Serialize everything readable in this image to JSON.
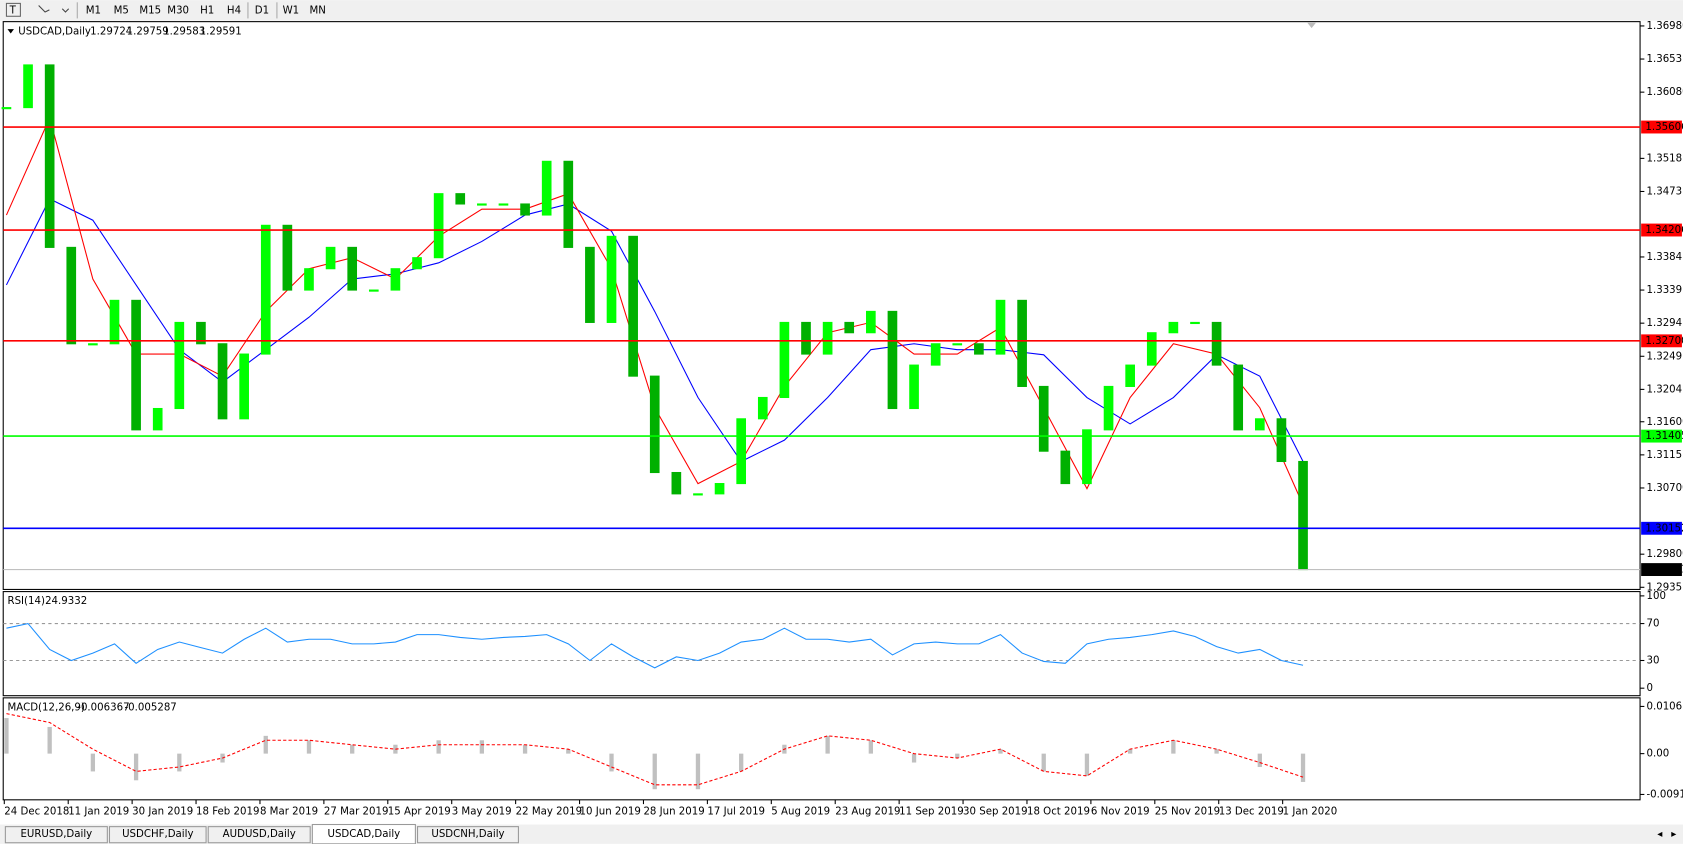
{
  "toolbar": {
    "timeframes": [
      "M1",
      "M5",
      "M15",
      "M30",
      "H1",
      "H4",
      "D1",
      "W1",
      "MN"
    ]
  },
  "tabs": [
    "EURUSD,Daily",
    "USDCHF,Daily",
    "AUDUSD,Daily",
    "USDCAD,Daily",
    "USDCNH,Daily"
  ],
  "active_tab": 3,
  "chart_data": [
    {
      "type": "candlestick",
      "title": "USDCAD,Daily",
      "quote": [
        1.29724,
        1.29759,
        1.29583,
        1.29591
      ],
      "color": "#00ff00",
      "down_color": "#00b000",
      "values": [
        1.3587,
        1.3645,
        1.3397,
        1.3266,
        1.3266,
        1.3325,
        1.3149,
        1.3178,
        1.3295,
        1.3266,
        1.3164,
        1.3252,
        1.3427,
        1.3339,
        1.3368,
        1.3397,
        1.3339,
        1.3339,
        1.3368,
        1.3383,
        1.347,
        1.3456,
        1.3456,
        1.3456,
        1.3441,
        1.3514,
        1.3397,
        1.3295,
        1.3412,
        1.3222,
        1.3091,
        1.3062,
        1.3062,
        1.3076,
        1.3164,
        1.3193,
        1.3295,
        1.3252,
        1.3295,
        1.3281,
        1.331,
        1.3178,
        1.3237,
        1.3266,
        1.3266,
        1.3252,
        1.3325,
        1.3208,
        1.312,
        1.3076,
        1.3149,
        1.3208,
        1.3237,
        1.3281,
        1.3295,
        1.3295,
        1.3237,
        1.3149,
        1.3164,
        1.3106,
        1.29591
      ],
      "series": [
        {
          "color": "#0000ff",
          "values": [
            1.3346,
            1.3463,
            1.3434,
            1.3346,
            1.3258,
            1.3214,
            1.3258,
            1.3302,
            1.3354,
            1.3361,
            1.3376,
            1.3405,
            1.3441,
            1.3456,
            1.3419,
            1.331,
            1.3193,
            1.3106,
            1.3135,
            1.3193,
            1.3258,
            1.3266,
            1.3258,
            1.3258,
            1.3251,
            1.3193,
            1.3157,
            1.3193,
            1.3251,
            1.3222,
            1.3106
          ]
        },
        {
          "color": "#ff0000",
          "values": [
            1.3441,
            1.3573,
            1.3354,
            1.3252,
            1.3252,
            1.3222,
            1.331,
            1.3368,
            1.3383,
            1.3354,
            1.3412,
            1.3449,
            1.3449,
            1.347,
            1.3368,
            1.3179,
            1.3076,
            1.3106,
            1.3208,
            1.3281,
            1.3295,
            1.3252,
            1.3252,
            1.3288,
            1.3179,
            1.3069,
            1.3193,
            1.3266,
            1.3252,
            1.3179,
            1.3047
          ]
        }
      ],
      "ylim": [
        1.2935,
        1.3698
      ],
      "yticks": [
        {
          "value": 1.3698,
          "label": "1.36980"
        },
        1.3653,
        {
          "value": 1.3608,
          "label": "1.36080"
        },
        1.3518,
        1.3473,
        1.3384,
        1.3339,
        1.3294,
        1.3249,
        1.3204,
        {
          "value": 1.316,
          "label": "1.31600"
        },
        1.3115,
        {
          "value": 1.307,
          "label": "1.30700"
        },
        {
          "value": 1.298,
          "label": "1.29800"
        },
        1.2935
      ],
      "levels": [
        {
          "value": 1.35606,
          "color": "#ff0000"
        },
        {
          "value": 1.34206,
          "color": "#ff0000"
        },
        {
          "value": 1.327,
          "label": "1.32700",
          "color": "#ff0000"
        },
        {
          "value": 1.31405,
          "color": "#00ff00"
        },
        {
          "value": 1.30152,
          "color": "#0000ff"
        },
        {
          "value": 1.29591,
          "color": "#c0c0c0",
          "label_color": "#000000"
        }
      ],
      "xtick_labels": [
        "24 Dec 2018",
        "11 Jan 2019",
        "30 Jan 2019",
        "18 Feb 2019",
        "8 Mar 2019",
        "27 Mar 2019",
        "15 Apr 2019",
        "3 May 2019",
        "22 May 2019",
        "10 Jun 2019",
        "28 Jun 2019",
        "17 Jul 2019",
        "5 Aug 2019",
        "23 Aug 2019",
        "11 Sep 2019",
        "30 Sep 2019",
        "18 Oct 2019",
        "6 Nov 2019",
        "25 Nov 2019",
        "13 Dec 2019",
        "1 Jan 2020"
      ]
    },
    {
      "type": "line",
      "title": "RSI(14)",
      "title_values": [
        24.9332
      ],
      "color": "#1e90ff",
      "values": [
        65,
        70,
        42,
        30,
        38,
        48,
        27,
        42,
        50,
        44,
        38,
        53,
        65,
        50,
        53,
        53,
        48,
        48,
        50,
        58,
        58,
        55,
        53,
        55,
        56,
        58,
        48,
        30,
        48,
        34,
        22,
        34,
        30,
        38,
        50,
        53,
        65,
        53,
        53,
        50,
        53,
        36,
        48,
        50,
        48,
        48,
        58,
        38,
        29,
        27,
        48,
        53,
        55,
        58,
        62,
        56,
        45,
        38,
        42,
        30,
        24.9332
      ],
      "ylim": [
        0,
        100
      ],
      "yticks": [
        100,
        70,
        30,
        0
      ]
    },
    {
      "type": "macd",
      "title": "MACD(12,26,9)",
      "title_values": [
        -0.006367,
        -0.005287
      ],
      "color": "#c0c0c0",
      "values": [
        0.008,
        0.006,
        -0.004,
        -0.006,
        -0.004,
        -0.002,
        0.004,
        0.003,
        0.002,
        0.002,
        0.003,
        0.003,
        0.002,
        0.001,
        -0.004,
        -0.008,
        -0.008,
        -0.004,
        0.002,
        0.004,
        0.003,
        -0.002,
        -0.001,
        0.001,
        -0.004,
        -0.005,
        0.001,
        0.003,
        0.001,
        -0.003,
        -0.006367
      ],
      "series": [
        {
          "color": "#ff0000",
          "values": [
            0.009,
            0.007,
            0.001,
            -0.004,
            -0.003,
            -0.001,
            0.003,
            0.003,
            0.002,
            0.001,
            0.002,
            0.002,
            0.002,
            0.001,
            -0.003,
            -0.007,
            -0.007,
            -0.004,
            0.001,
            0.004,
            0.003,
            0,
            -0.001,
            0.001,
            -0.004,
            -0.005,
            0.001,
            0.003,
            0.001,
            -0.002,
            -0.005287
          ]
        }
      ],
      "ylim": [
        -0.009181,
        0.010615
      ],
      "yticks": [
        0.010615,
        {
          "value": 0,
          "label": "0.00"
        },
        -0.009181
      ]
    }
  ]
}
